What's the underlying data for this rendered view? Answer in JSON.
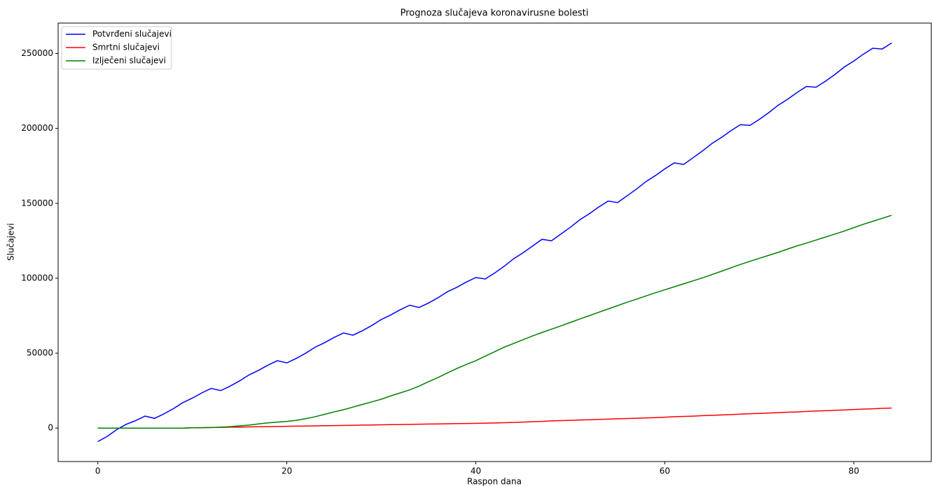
{
  "chart_data": {
    "type": "line",
    "title": "Prognoza slučajeva koronavirusne bolesti",
    "xlabel": "Raspon dana",
    "ylabel": "Slučajevi",
    "x": [
      0,
      1,
      2,
      3,
      4,
      5,
      6,
      7,
      8,
      9,
      10,
      11,
      12,
      13,
      14,
      15,
      16,
      17,
      18,
      19,
      20,
      21,
      22,
      23,
      24,
      25,
      26,
      27,
      28,
      29,
      30,
      31,
      32,
      33,
      34,
      35,
      36,
      37,
      38,
      39,
      40,
      41,
      42,
      43,
      44,
      45,
      46,
      47,
      48,
      49,
      50,
      51,
      52,
      53,
      54,
      55,
      56,
      57,
      58,
      59,
      60,
      61,
      62,
      63,
      64,
      65,
      66,
      67,
      68,
      69,
      70,
      71,
      72,
      73,
      74,
      75,
      76,
      77,
      78,
      79,
      80,
      81,
      82,
      83,
      84
    ],
    "series": [
      {
        "name": "Potvrđeni slučajevi",
        "color": "#0000ff",
        "values": [
          -9000,
          -5500,
          -1000,
          2500,
          5000,
          8000,
          6500,
          9500,
          13000,
          17000,
          20000,
          23500,
          26500,
          25000,
          28000,
          31500,
          35500,
          38500,
          42000,
          45000,
          43500,
          46500,
          50000,
          54000,
          57000,
          60500,
          63500,
          62000,
          65000,
          68500,
          72500,
          75500,
          79000,
          82000,
          80500,
          83500,
          87000,
          91000,
          94000,
          97500,
          100500,
          99500,
          103500,
          108000,
          113000,
          117000,
          121500,
          126000,
          125000,
          129500,
          134000,
          139000,
          143000,
          147500,
          151500,
          150500,
          155000,
          159500,
          164500,
          168500,
          173000,
          177000,
          176000,
          180500,
          185000,
          190000,
          194000,
          198500,
          202500,
          202000,
          206000,
          210500,
          215500,
          219500,
          224000,
          228000,
          227500,
          231500,
          236000,
          241000,
          245000,
          249500,
          253500,
          253000,
          257000
        ]
      },
      {
        "name": "Smrtni slučajevi",
        "color": "#ff0000",
        "values": [
          0,
          0,
          0,
          0,
          0,
          0,
          0,
          0,
          0,
          0,
          200,
          300,
          400,
          500,
          600,
          700,
          800,
          900,
          1000,
          1100,
          1200,
          1300,
          1400,
          1500,
          1600,
          1700,
          1800,
          1900,
          2000,
          2100,
          2200,
          2300,
          2400,
          2500,
          2600,
          2700,
          2800,
          2900,
          3000,
          3100,
          3200,
          3300,
          3400,
          3600,
          3800,
          4000,
          4300,
          4500,
          4800,
          5000,
          5200,
          5400,
          5600,
          5800,
          6000,
          6200,
          6400,
          6600,
          6800,
          7000,
          7300,
          7600,
          7800,
          8000,
          8300,
          8500,
          8800,
          9000,
          9300,
          9600,
          9800,
          10100,
          10300,
          10600,
          10800,
          11100,
          11400,
          11600,
          11900,
          12100,
          12400,
          12700,
          12900,
          13200,
          13400
        ]
      },
      {
        "name": "Izlječeni slučajevi",
        "color": "#008000",
        "values": [
          0,
          0,
          0,
          0,
          0,
          0,
          0,
          0,
          0,
          0,
          200,
          300,
          400,
          600,
          1000,
          1500,
          2000,
          2800,
          3500,
          4000,
          4500,
          5200,
          6300,
          7600,
          9200,
          10800,
          12300,
          14000,
          15800,
          17500,
          19300,
          21500,
          23500,
          25500,
          28000,
          31000,
          33800,
          36800,
          39800,
          42500,
          45000,
          48000,
          51000,
          54000,
          56500,
          59000,
          61500,
          63800,
          66000,
          68200,
          70500,
          72800,
          75000,
          77300,
          79500,
          81700,
          84000,
          86000,
          88200,
          90300,
          92300,
          94300,
          96300,
          98300,
          100300,
          102500,
          104700,
          107000,
          109200,
          111300,
          113300,
          115300,
          117300,
          119500,
          121600,
          123500,
          125500,
          127500,
          129500,
          131500,
          133800,
          136000,
          138000,
          140000,
          142000
        ]
      }
    ],
    "xlim": [
      -4.2,
      88.2
    ],
    "xticks": [
      0,
      20,
      40,
      60,
      80
    ],
    "ylim": [
      -22300,
      270300
    ],
    "yticks": [
      0,
      50000,
      100000,
      150000,
      200000,
      250000
    ],
    "legend": "upper left",
    "grid": false
  }
}
